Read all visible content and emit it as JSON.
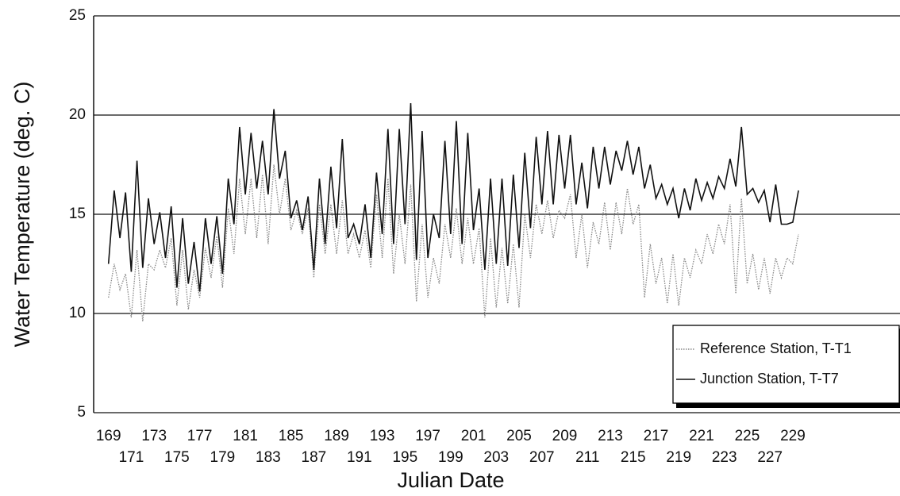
{
  "chart_data": {
    "type": "line",
    "x_label": "Julian Date",
    "y_label": "Water Temperature (deg. C)",
    "xlim": [
      167.7,
      238.4
    ],
    "ylim": [
      5,
      25
    ],
    "xticks": [
      169,
      171,
      173,
      175,
      177,
      179,
      181,
      183,
      185,
      187,
      189,
      191,
      193,
      195,
      197,
      199,
      201,
      203,
      205,
      207,
      209,
      211,
      213,
      215,
      217,
      219,
      221,
      223,
      225,
      227,
      229
    ],
    "yticks": [
      5,
      10,
      15,
      20,
      25
    ],
    "grid": true,
    "legend": "lower right",
    "x": [
      169,
      169.5,
      170,
      170.5,
      171,
      171.5,
      172,
      172.5,
      173,
      173.5,
      174,
      174.5,
      175,
      175.5,
      176,
      176.5,
      177,
      177.5,
      178,
      178.5,
      179,
      179.5,
      180,
      180.5,
      181,
      181.5,
      182,
      182.5,
      183,
      183.5,
      184,
      184.5,
      185,
      185.5,
      186,
      186.5,
      187,
      187.5,
      188,
      188.5,
      189,
      189.5,
      190,
      190.5,
      191,
      191.5,
      192,
      192.5,
      193,
      193.5,
      194,
      194.5,
      195,
      195.5,
      196,
      196.5,
      197,
      197.5,
      198,
      198.5,
      199,
      199.5,
      200,
      200.5,
      201,
      201.5,
      202,
      202.5,
      203,
      203.5,
      204,
      204.5,
      205,
      205.5,
      206,
      206.5,
      207,
      207.5,
      208,
      208.5,
      209,
      209.5,
      210,
      210.5,
      211,
      211.5,
      212,
      212.5,
      213,
      213.5,
      214,
      214.5,
      215,
      215.5,
      216,
      216.5,
      217,
      217.5,
      218,
      218.5,
      219,
      219.5,
      220,
      220.5,
      221,
      221.5,
      222,
      222.5,
      223,
      223.5,
      224,
      224.5,
      225,
      225.5,
      226,
      226.5,
      227,
      227.5,
      228,
      228.5,
      229,
      229.5
    ],
    "series": [
      {
        "name": "Reference Station, T-T1",
        "color": "#888888",
        "dash": "dotted",
        "values": [
          10.8,
          12.5,
          11.2,
          12.0,
          9.8,
          13.2,
          9.6,
          12.5,
          12.2,
          13.2,
          12.3,
          13.8,
          10.4,
          13.2,
          10.2,
          12.2,
          10.8,
          13.3,
          11.8,
          13.9,
          11.3,
          15.3,
          13.0,
          16.8,
          14.0,
          16.8,
          13.8,
          17.0,
          13.5,
          17.5,
          15.0,
          16.8,
          14.2,
          15.2,
          14.0,
          15.3,
          11.8,
          15.5,
          13.0,
          15.5,
          13.0,
          15.7,
          13.0,
          14.0,
          12.8,
          14.2,
          12.3,
          16.0,
          12.8,
          16.8,
          12.0,
          15.0,
          12.5,
          16.5,
          10.6,
          14.5,
          10.8,
          12.8,
          11.5,
          14.5,
          12.8,
          15.3,
          12.5,
          14.8,
          12.5,
          14.3,
          9.8,
          13.8,
          10.3,
          13.3,
          10.5,
          13.5,
          10.3,
          15.0,
          12.8,
          15.5,
          14.0,
          15.7,
          13.8,
          15.2,
          14.8,
          16.0,
          12.8,
          15.0,
          12.3,
          14.6,
          13.5,
          15.6,
          13.2,
          15.6,
          14.0,
          16.3,
          14.5,
          15.5,
          10.8,
          13.5,
          11.5,
          12.8,
          10.5,
          13.0,
          10.4,
          12.8,
          11.8,
          13.2,
          12.5,
          14.0,
          13.0,
          14.5,
          13.5,
          15.5,
          11.0,
          15.8,
          11.5,
          13.0,
          11.2,
          12.8,
          11.0,
          12.8,
          11.8,
          12.8,
          12.5,
          14.0
        ]
      },
      {
        "name": "Junction Station, T-T7",
        "color": "#111111",
        "dash": "solid",
        "values": [
          12.5,
          16.2,
          13.8,
          16.1,
          12.1,
          17.7,
          12.3,
          15.8,
          13.5,
          15.1,
          12.8,
          15.4,
          11.3,
          14.8,
          11.5,
          13.6,
          11.1,
          14.8,
          12.5,
          14.9,
          12.0,
          16.8,
          14.5,
          19.4,
          16.0,
          19.1,
          16.3,
          18.7,
          16.0,
          20.3,
          16.8,
          18.2,
          14.8,
          15.7,
          14.2,
          15.9,
          12.2,
          16.8,
          13.5,
          17.4,
          14.3,
          18.8,
          13.8,
          14.5,
          13.5,
          15.5,
          12.8,
          17.1,
          14.0,
          19.3,
          13.5,
          19.3,
          14.5,
          20.6,
          12.7,
          19.2,
          12.8,
          15.0,
          13.8,
          18.7,
          14.0,
          19.7,
          13.5,
          19.1,
          14.2,
          16.3,
          12.2,
          16.8,
          12.5,
          16.8,
          12.4,
          17.0,
          13.3,
          18.1,
          14.3,
          18.9,
          15.5,
          19.2,
          15.5,
          19.0,
          16.3,
          19.0,
          15.5,
          17.6,
          15.3,
          18.4,
          16.3,
          18.4,
          16.5,
          18.2,
          17.2,
          18.7,
          17.0,
          18.4,
          16.3,
          17.5,
          15.8,
          16.5,
          15.5,
          16.3,
          14.8,
          16.3,
          15.2,
          16.8,
          15.7,
          16.6,
          15.8,
          16.9,
          16.3,
          17.8,
          16.4,
          19.4,
          16.0,
          16.3,
          15.6,
          16.2,
          14.6,
          16.5,
          14.5,
          14.5,
          14.6,
          16.2
        ]
      }
    ]
  }
}
